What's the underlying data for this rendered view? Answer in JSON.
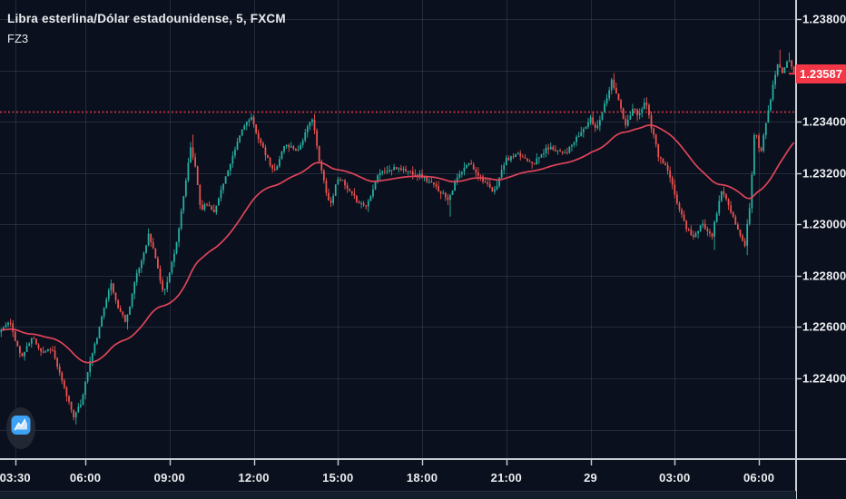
{
  "legend": {
    "symbol_title": "Libra esterlina/Dólar estadounidense, 5, FXCM",
    "study_label": "FZ3"
  },
  "colors": {
    "background": "#0a101d",
    "grid": "rgba(160,180,210,0.16)",
    "axis_line": "#c9cdd4",
    "axis_text": "#eceef1",
    "candle_up": "#27b2a3",
    "candle_down": "#ef5350",
    "ma_line": "#e0445a",
    "dotted_line": "#f23645",
    "last_label_bg": "#f23645",
    "last_label_text": "#ffffff",
    "logo_blue": "#3da1f5"
  },
  "price_axis": {
    "last_price_label": "1.23587",
    "ticks": [
      {
        "label": "1.23800",
        "value": 1.238
      },
      {
        "label": "1.23400",
        "value": 1.234
      },
      {
        "label": "1.23200",
        "value": 1.232
      },
      {
        "label": "1.23000",
        "value": 1.23
      },
      {
        "label": "1.22800",
        "value": 1.228
      },
      {
        "label": "1.22600",
        "value": 1.226
      },
      {
        "label": "1.22400",
        "value": 1.224
      }
    ]
  },
  "time_axis": {
    "ticks": [
      {
        "label": "03:30",
        "minute": 30
      },
      {
        "label": "06:00",
        "minute": 180
      },
      {
        "label": "09:00",
        "minute": 360
      },
      {
        "label": "12:00",
        "minute": 540
      },
      {
        "label": "15:00",
        "minute": 720
      },
      {
        "label": "18:00",
        "minute": 900
      },
      {
        "label": "21:00",
        "minute": 1080
      },
      {
        "label": "29",
        "minute": 1260
      },
      {
        "label": "03:00",
        "minute": 1440
      },
      {
        "label": "06:00",
        "minute": 1620
      }
    ]
  },
  "chart_data": {
    "type": "candlestick",
    "title": "Libra esterlina/Dólar estadounidense, 5, FXCM",
    "symbol": "GBP/USD",
    "exchange": "FXCM",
    "interval_minutes": 5,
    "candle_count": 340,
    "session_start_label": "03:30",
    "last_price": 1.23587,
    "previous_close_line": 1.2344,
    "y_axis": {
      "min": 1.22089,
      "max": 1.23874,
      "grid_step": 0.002,
      "grid_min": 1.222,
      "grid_max": 1.238
    },
    "legend_position": "top-left",
    "grid": true,
    "ma": {
      "kind": "ema",
      "period": 50
    },
    "price_waypoints": [
      [
        0,
        1.2258
      ],
      [
        23,
        1.2262
      ],
      [
        48,
        1.2248
      ],
      [
        72,
        1.2256
      ],
      [
        93,
        1.225
      ],
      [
        113,
        1.2252
      ],
      [
        136,
        1.2238
      ],
      [
        161,
        1.2225
      ],
      [
        175,
        1.223
      ],
      [
        194,
        1.2246
      ],
      [
        213,
        1.2258
      ],
      [
        233,
        1.2274
      ],
      [
        239,
        1.2277
      ],
      [
        254,
        1.2268
      ],
      [
        272,
        1.2262
      ],
      [
        291,
        1.2278
      ],
      [
        307,
        1.2287
      ],
      [
        320,
        1.2296
      ],
      [
        334,
        1.2288
      ],
      [
        351,
        1.2273
      ],
      [
        365,
        1.2281
      ],
      [
        382,
        1.2295
      ],
      [
        398,
        1.2314
      ],
      [
        409,
        1.233
      ],
      [
        421,
        1.2322
      ],
      [
        431,
        1.2306
      ],
      [
        446,
        1.2308
      ],
      [
        462,
        1.2305
      ],
      [
        479,
        1.2316
      ],
      [
        495,
        1.2323
      ],
      [
        510,
        1.2332
      ],
      [
        524,
        1.2339
      ],
      [
        540,
        1.2341
      ],
      [
        563,
        1.233
      ],
      [
        588,
        1.232
      ],
      [
        611,
        1.2331
      ],
      [
        640,
        1.2329
      ],
      [
        671,
        1.2342
      ],
      [
        683,
        1.2326
      ],
      [
        708,
        1.2307
      ],
      [
        726,
        1.2319
      ],
      [
        747,
        1.2313
      ],
      [
        767,
        1.2309
      ],
      [
        786,
        1.2307
      ],
      [
        811,
        1.232
      ],
      [
        854,
        1.2322
      ],
      [
        902,
        1.2319
      ],
      [
        931,
        1.2315
      ],
      [
        961,
        1.231
      ],
      [
        980,
        1.2318
      ],
      [
        1005,
        1.2324
      ],
      [
        1032,
        1.2318
      ],
      [
        1058,
        1.2312
      ],
      [
        1083,
        1.2325
      ],
      [
        1110,
        1.2327
      ],
      [
        1145,
        1.2324
      ],
      [
        1174,
        1.233
      ],
      [
        1213,
        1.2328
      ],
      [
        1242,
        1.2335
      ],
      [
        1265,
        1.2341
      ],
      [
        1277,
        1.2337
      ],
      [
        1292,
        1.2345
      ],
      [
        1310,
        1.2356
      ],
      [
        1323,
        1.235
      ],
      [
        1339,
        1.2338
      ],
      [
        1356,
        1.2345
      ],
      [
        1368,
        1.2342
      ],
      [
        1382,
        1.2349
      ],
      [
        1395,
        1.2338
      ],
      [
        1411,
        1.2326
      ],
      [
        1428,
        1.2322
      ],
      [
        1451,
        1.2308
      ],
      [
        1469,
        1.2299
      ],
      [
        1486,
        1.2295
      ],
      [
        1504,
        1.23
      ],
      [
        1525,
        1.2296
      ],
      [
        1546,
        1.2314
      ],
      [
        1564,
        1.2305
      ],
      [
        1581,
        1.2297
      ],
      [
        1595,
        1.2292
      ],
      [
        1607,
        1.231
      ],
      [
        1616,
        1.2338
      ],
      [
        1628,
        1.2327
      ],
      [
        1642,
        1.2342
      ],
      [
        1653,
        1.2352
      ],
      [
        1665,
        1.2363
      ],
      [
        1675,
        1.2359
      ],
      [
        1685,
        1.2364
      ],
      [
        1690,
        1.23645
      ],
      [
        1700,
        1.23587
      ]
    ],
    "wick_overrides": [
      {
        "minute": 160,
        "low": 1.2222
      },
      {
        "minute": 270,
        "low": 1.2259
      },
      {
        "minute": 410,
        "high": 1.2335
      },
      {
        "minute": 670,
        "high": 1.2343
      },
      {
        "minute": 960,
        "low": 1.2303
      },
      {
        "minute": 1265,
        "high": 1.2344
      },
      {
        "minute": 1310,
        "high": 1.2359
      },
      {
        "minute": 1525,
        "low": 1.229
      },
      {
        "minute": 1595,
        "low": 1.2288
      },
      {
        "minute": 1665,
        "high": 1.2368
      },
      {
        "minute": 1685,
        "high": 1.2367
      }
    ],
    "noise": {
      "seed": 11,
      "close_jitter": 8e-05,
      "wick_max": 0.00022
    }
  }
}
